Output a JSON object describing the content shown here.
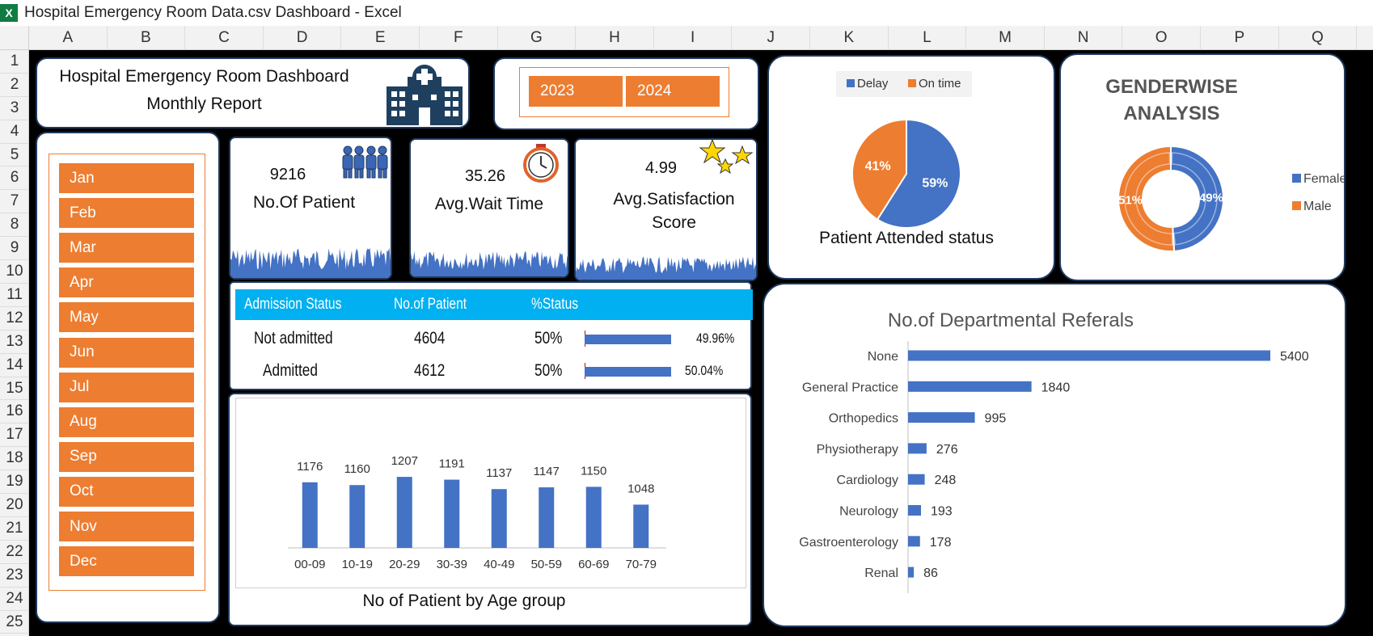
{
  "window": {
    "title": "Hospital Emergency Room Data.csv Dashboard - Excel",
    "icon": "excel-icon"
  },
  "columns": [
    "A",
    "B",
    "C",
    "D",
    "E",
    "F",
    "G",
    "H",
    "I",
    "J",
    "K",
    "L",
    "M",
    "N",
    "O",
    "P",
    "Q"
  ],
  "rows": [
    "1",
    "2",
    "3",
    "4",
    "5",
    "6",
    "7",
    "8",
    "9",
    "10",
    "11",
    "12",
    "13",
    "14",
    "15",
    "16",
    "17",
    "18",
    "19",
    "20",
    "21",
    "22",
    "23",
    "24",
    "25"
  ],
  "header": {
    "line1": "Hospital Emergency Room Dashboard",
    "line2": "Monthly Report",
    "icon": "hospital-icon"
  },
  "years": [
    "2023",
    "2024"
  ],
  "months": [
    "Jan",
    "Feb",
    "Mar",
    "Apr",
    "May",
    "Jun",
    "Jul",
    "Aug",
    "Sep",
    "Oct",
    "Nov",
    "Dec"
  ],
  "kpis": {
    "patients": {
      "value": "9216",
      "label": "No.Of Patient",
      "icon": "people-icon"
    },
    "wait": {
      "value": "35.26",
      "label": "Avg.Wait Time",
      "icon": "stopwatch-icon"
    },
    "satisfaction": {
      "value": "4.99",
      "label1": "Avg.Satisfaction",
      "label2": "Score",
      "icon": "stars-icon"
    }
  },
  "admission": {
    "headers": [
      "Admission Status",
      "No.of Patient",
      "%Status"
    ],
    "rows": [
      {
        "status": "Not admitted",
        "count": "4604",
        "pct": "50%",
        "share": "49.96%",
        "fraction": 0.4996
      },
      {
        "status": "Admitted",
        "count": "4612",
        "pct": "50%",
        "share": "50.04%",
        "fraction": 0.5004
      }
    ]
  },
  "colors": {
    "orange": "#ed7d31",
    "blue": "#4472c4",
    "cyan": "#00b0f0",
    "navy": "#1f3a5f"
  },
  "chart_data": [
    {
      "type": "pie",
      "title": "Patient Attended status",
      "legend": "top",
      "categories": [
        "Delay",
        "On time"
      ],
      "values": [
        59,
        41
      ],
      "labels": [
        "59%",
        "41%"
      ],
      "colors": [
        "#4472c4",
        "#ed7d31"
      ]
    },
    {
      "type": "pie",
      "title": "GENDERWISE\nANALYSIS",
      "title1": "GENDERWISE",
      "title2": "ANALYSIS",
      "legend": "right",
      "categories": [
        "Female",
        "Male"
      ],
      "values": [
        49,
        51
      ],
      "labels": [
        "49%",
        "51%"
      ],
      "colors": [
        "#4472c4",
        "#ed7d31"
      ]
    },
    {
      "type": "bar",
      "orientation": "horizontal",
      "title": "No.of Departmental Referals",
      "categories": [
        "None",
        "General Practice",
        "Orthopedics",
        "Physiotherapy",
        "Cardiology",
        "Neurology",
        "Gastroenterology",
        "Renal"
      ],
      "values": [
        5400,
        1840,
        995,
        276,
        248,
        193,
        178,
        86
      ],
      "xlim": [
        0,
        5400
      ],
      "color": "#4472c4"
    },
    {
      "type": "bar",
      "title": "No of Patient by Age group",
      "categories": [
        "00-09",
        "10-19",
        "20-29",
        "30-39",
        "40-49",
        "50-59",
        "60-69",
        "70-79"
      ],
      "values": [
        1176,
        1160,
        1207,
        1191,
        1137,
        1147,
        1150,
        1048
      ],
      "ylim": [
        800,
        1300
      ],
      "color": "#4472c4"
    }
  ]
}
